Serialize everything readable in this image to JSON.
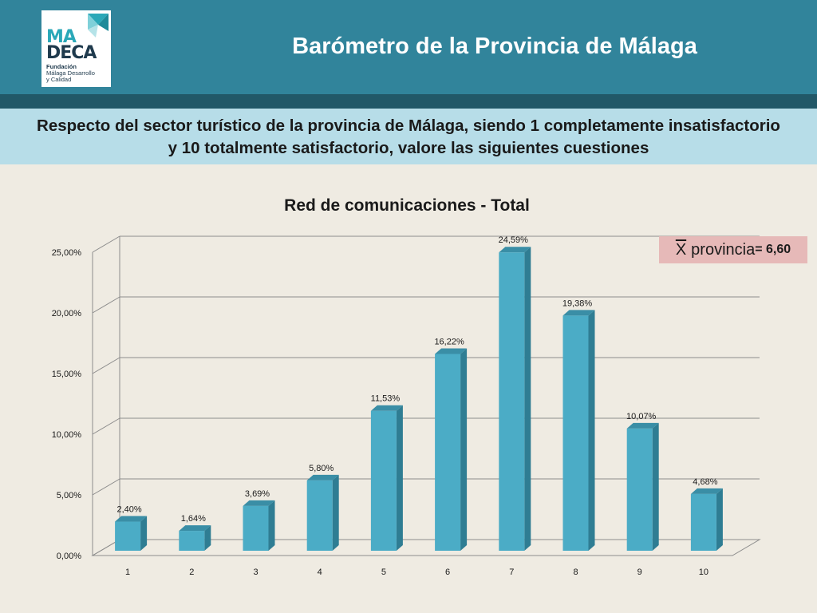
{
  "logo": {
    "line1": "MA",
    "line2": "DECA",
    "sub_bold": "Fundación",
    "sub_1": "Málaga Desarrollo",
    "sub_2": "y Calidad"
  },
  "slide_title": "Barómetro de la Provincia de Málaga",
  "question": "Respecto del sector turístico de la provincia de Málaga, siendo 1 completamente insatisfactorio y 10 totalmente satisfactorio, valore las siguientes cuestiones",
  "mean": {
    "symbol": "X",
    "label": "provincia",
    "value": "= 6,60"
  },
  "colors": {
    "bar_front": "#4bacc6",
    "bar_side": "#2f7d93",
    "bar_top": "#3a8ea6",
    "header": "#31849b"
  },
  "chart_data": {
    "type": "bar",
    "title": "Red de comunicaciones - Total",
    "categories": [
      "1",
      "2",
      "3",
      "4",
      "5",
      "6",
      "7",
      "8",
      "9",
      "10"
    ],
    "values": [
      2.4,
      1.64,
      3.69,
      5.8,
      11.53,
      16.22,
      24.59,
      19.38,
      10.07,
      4.68
    ],
    "data_labels": [
      "2,40%",
      "1,64%",
      "3,69%",
      "5,80%",
      "11,53%",
      "16,22%",
      "24,59%",
      "19,38%",
      "10,07%",
      "4,68%"
    ],
    "y_ticks": [
      "0,00%",
      "5,00%",
      "10,00%",
      "15,00%",
      "20,00%",
      "25,00%"
    ],
    "ylim": [
      0,
      25
    ],
    "grid": true,
    "legend": "none"
  }
}
